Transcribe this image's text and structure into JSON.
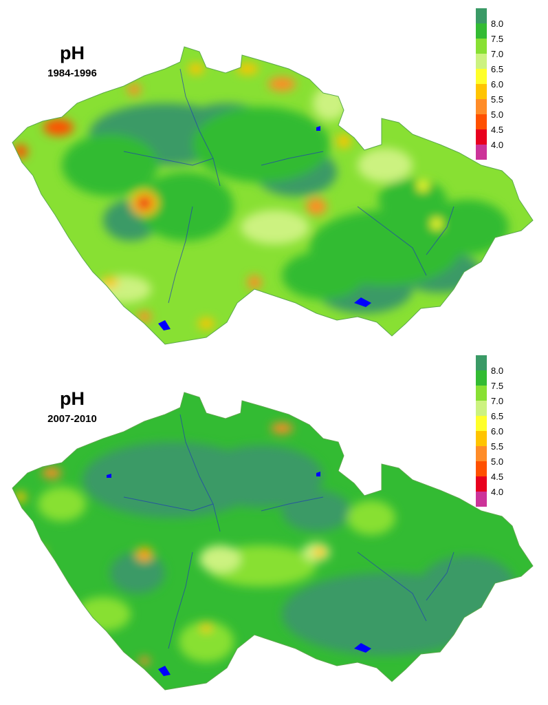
{
  "maps": [
    {
      "title": "pH",
      "period": "1984-1996",
      "legend": {
        "labels": [
          "8.0",
          "7.5",
          "7.0",
          "6.5",
          "6.0",
          "5.5",
          "5.0",
          "4.5",
          "4.0"
        ],
        "colors": [
          "#3a9a66",
          "#33bb33",
          "#88e033",
          "#ccf280",
          "#ffff2a",
          "#ffc400",
          "#ff8c28",
          "#ff5000",
          "#e8001e",
          "#cc3399"
        ]
      }
    },
    {
      "title": "pH",
      "period": "2007-2010",
      "legend": {
        "labels": [
          "8.0",
          "7.5",
          "7.0",
          "6.5",
          "6.0",
          "5.5",
          "5.0",
          "4.5",
          "4.0"
        ],
        "colors": [
          "#3a9a66",
          "#33bb33",
          "#88e033",
          "#ccf280",
          "#ffff2a",
          "#ffc400",
          "#ff8c28",
          "#ff5000",
          "#e8001e",
          "#cc3399"
        ]
      }
    }
  ]
}
